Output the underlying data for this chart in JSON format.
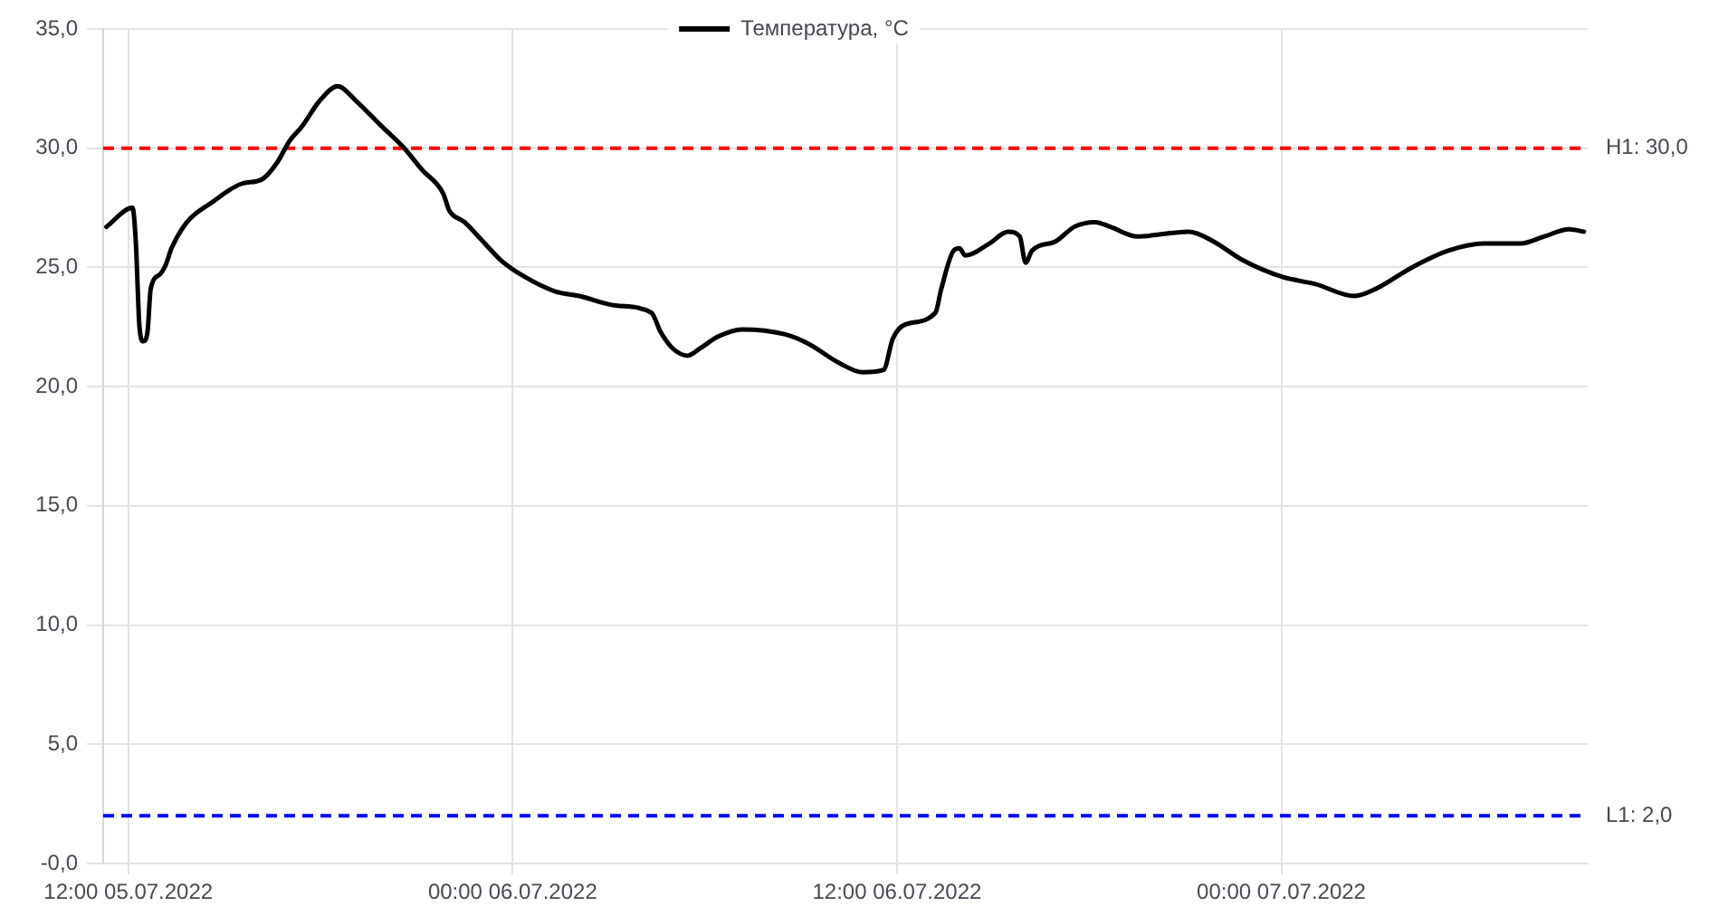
{
  "chart_data": {
    "type": "line",
    "x": [
      "2022-07-05T11:19",
      "2022-07-05T12:08",
      "2022-07-05T12:14",
      "2022-07-05T12:21",
      "2022-07-05T12:28",
      "2022-07-05T12:36",
      "2022-07-05T12:42",
      "2022-07-05T12:59",
      "2022-07-05T13:10",
      "2022-07-05T13:21",
      "2022-07-05T13:50",
      "2022-07-05T14:35",
      "2022-07-05T15:31",
      "2022-07-05T16:11",
      "2022-07-05T16:39",
      "2022-07-05T17:02",
      "2022-07-05T17:25",
      "2022-07-05T17:59",
      "2022-07-05T18:32",
      "2022-07-05T19:06",
      "2022-07-05T19:51",
      "2022-07-05T20:37",
      "2022-07-05T21:10",
      "2022-07-05T21:50",
      "2022-07-05T22:01",
      "2022-07-05T22:30",
      "2022-07-05T23:04",
      "2022-07-05T23:38",
      "2022-07-06T00:23",
      "2022-07-06T01:19",
      "2022-07-06T02:05",
      "2022-07-06T03:13",
      "2022-07-06T04:20",
      "2022-07-06T04:37",
      "2022-07-06T05:00",
      "2022-07-06T05:28",
      "2022-07-06T05:51",
      "2022-07-06T06:25",
      "2022-07-06T07:10",
      "2022-07-06T08:29",
      "2022-07-06T09:14",
      "2022-07-06T10:11",
      "2022-07-06T10:56",
      "2022-07-06T11:35",
      "2022-07-06T11:52",
      "2022-07-06T12:15",
      "2022-07-06T13:12",
      "2022-07-06T13:23",
      "2022-07-06T13:46",
      "2022-07-06T13:57",
      "2022-07-06T14:08",
      "2022-07-06T14:53",
      "2022-07-06T15:28",
      "2022-07-06T15:50",
      "2022-07-06T16:01",
      "2022-07-06T16:13",
      "2022-07-06T16:58",
      "2022-07-06T17:32",
      "2022-07-06T18:11",
      "2022-07-06T18:40",
      "2022-07-06T19:30",
      "2022-07-06T21:07",
      "2022-07-06T21:52",
      "2022-07-06T22:48",
      "2022-07-07T00:02",
      "2022-07-07T01:04",
      "2022-07-07T02:17",
      "2022-07-07T02:57",
      "2022-07-07T04:05",
      "2022-07-07T05:13",
      "2022-07-07T06:20",
      "2022-07-07T07:28",
      "2022-07-07T08:13",
      "2022-07-07T08:59",
      "2022-07-07T09:27"
    ],
    "series": [
      {
        "name": "Температура, °C",
        "color": "#000000",
        "values": [
          26.7,
          27.5,
          26.1,
          22.5,
          21.9,
          22.3,
          24.1,
          24.7,
          25.1,
          25.8,
          26.9,
          27.7,
          28.5,
          28.7,
          29.4,
          30.3,
          30.9,
          32.0,
          32.6,
          32.0,
          31.0,
          30.0,
          29.1,
          28.1,
          27.4,
          26.9,
          26.1,
          25.3,
          24.6,
          24.0,
          23.8,
          23.4,
          23.1,
          22.3,
          21.6,
          21.3,
          21.6,
          22.1,
          22.4,
          22.2,
          21.8,
          21.0,
          20.6,
          20.7,
          22.0,
          22.6,
          23.1,
          24.1,
          25.7,
          25.8,
          25.5,
          26.0,
          26.5,
          26.3,
          25.2,
          25.7,
          26.1,
          26.7,
          26.9,
          26.7,
          26.3,
          26.5,
          26.1,
          25.3,
          24.6,
          24.3,
          23.8,
          24.1,
          25.0,
          25.7,
          26.0,
          26.0,
          26.3,
          26.6,
          26.5
        ]
      }
    ],
    "xlim": [
      "2022-07-05T11:13",
      "2022-07-07T09:34"
    ],
    "xticks": [
      {
        "value": "2022-07-05T12:00",
        "label": "12:00 05.07.2022"
      },
      {
        "value": "2022-07-06T00:00",
        "label": "00:00 06.07.2022"
      },
      {
        "value": "2022-07-06T12:00",
        "label": "12:00 06.07.2022"
      },
      {
        "value": "2022-07-07T00:00",
        "label": "00:00 07.07.2022"
      }
    ],
    "ylim": [
      0,
      35
    ],
    "yticks": [
      {
        "value": 0,
        "label": "-0,0"
      },
      {
        "value": 5,
        "label": "5,0"
      },
      {
        "value": 10,
        "label": "10,0"
      },
      {
        "value": 15,
        "label": "15,0"
      },
      {
        "value": 20,
        "label": "20,0"
      },
      {
        "value": 25,
        "label": "25,0"
      },
      {
        "value": 30,
        "label": "30,0"
      },
      {
        "value": 35,
        "label": "35,0"
      }
    ],
    "ref_lines": [
      {
        "axis": "y",
        "value": 30,
        "label": "H1: 30,0",
        "color": "#ff0000",
        "line_style": "dashed"
      },
      {
        "axis": "y",
        "value": 2,
        "label": "L1: 2,0",
        "color": "#0000ff",
        "line_style": "dashed"
      }
    ],
    "grid": true,
    "legend": "top"
  }
}
